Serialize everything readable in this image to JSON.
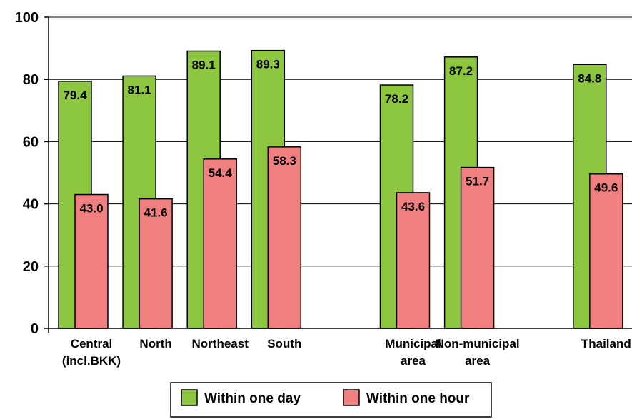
{
  "chart_data": {
    "type": "bar",
    "categories": [
      [
        "Central",
        "(incl.BKK)"
      ],
      [
        "North"
      ],
      [
        "Northeast"
      ],
      [
        "South"
      ],
      [
        "Municipal",
        "area"
      ],
      [
        "Non-municipal",
        "area"
      ],
      [
        "Thailand"
      ]
    ],
    "series": [
      {
        "name": "Within one day",
        "values": [
          79.4,
          81.1,
          89.1,
          89.3,
          78.2,
          87.2,
          84.8
        ],
        "color": "#8DC63F"
      },
      {
        "name": "Within one hour",
        "values": [
          43.0,
          41.6,
          54.4,
          58.3,
          43.6,
          51.7,
          49.6
        ],
        "color": "#F08080"
      }
    ],
    "value_labels": {
      "within_one_day": [
        "79.4",
        "81.1",
        "89.1",
        "89.3",
        "78.2",
        "87.2",
        "84.8"
      ],
      "within_one_hour": [
        "43.0",
        "41.6",
        "54.4",
        "58.3",
        "43.6",
        "51.7",
        "49.6"
      ]
    },
    "yticks": [
      "0",
      "20",
      "40",
      "60",
      "80",
      "100"
    ],
    "ylim": [
      0,
      100
    ],
    "grid": true,
    "legend_position": "bottom-center",
    "title": "",
    "xlabel": "",
    "ylabel": ""
  }
}
